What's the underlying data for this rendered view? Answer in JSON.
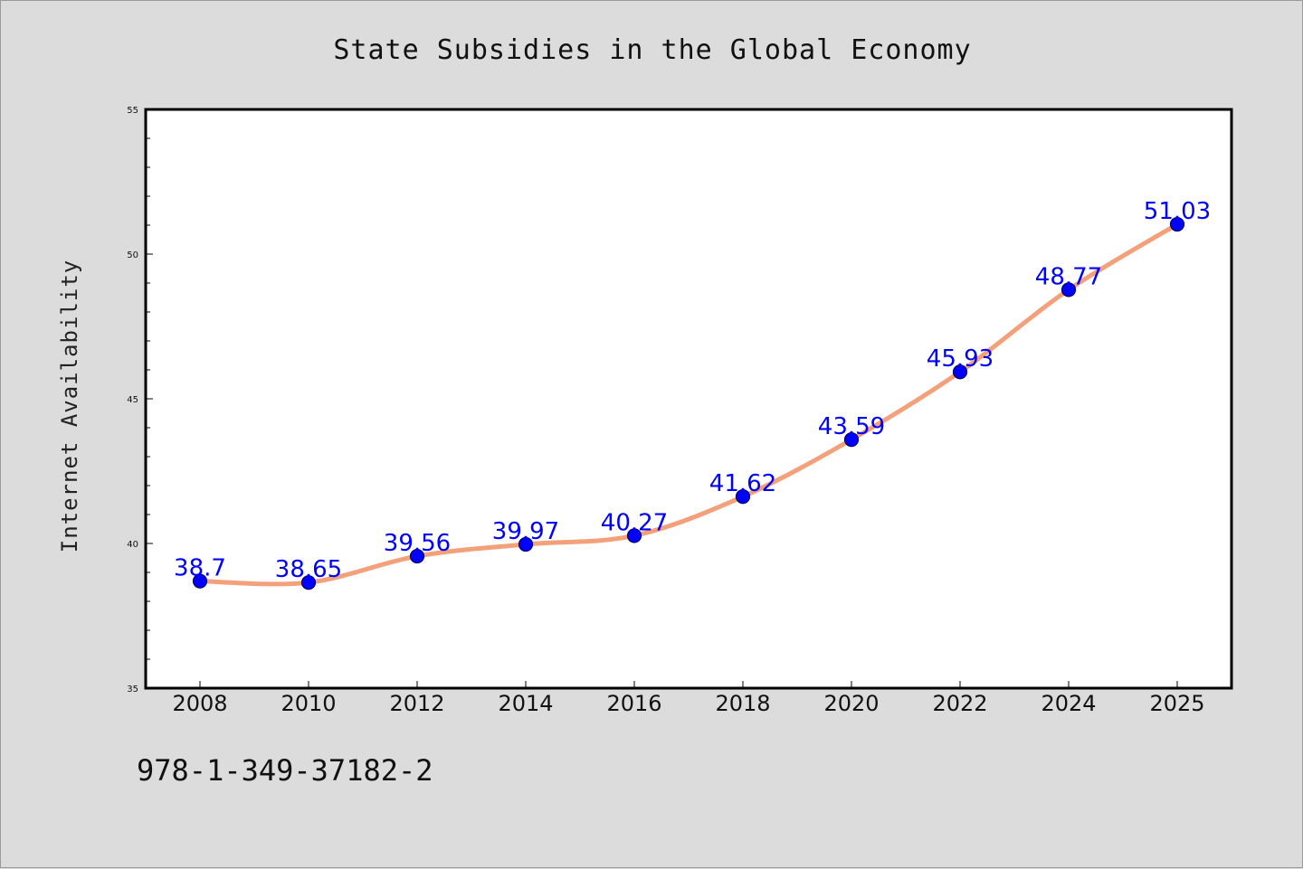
{
  "chart_data": {
    "type": "line",
    "title": "State Subsidies in the Global Economy",
    "xlabel": "",
    "ylabel": "Internet Availability",
    "categories": [
      "2008",
      "2010",
      "2012",
      "2014",
      "2016",
      "2018",
      "2020",
      "2022",
      "2024",
      "2025"
    ],
    "values": [
      38.7,
      38.65,
      39.56,
      39.97,
      40.27,
      41.62,
      43.59,
      45.93,
      48.77,
      51.03
    ],
    "data_labels": [
      "38.7",
      "38.65",
      "39.56",
      "39.97",
      "40.27",
      "41.62",
      "43.59",
      "45.93",
      "48.77",
      "51.03"
    ],
    "ylim": [
      35,
      55
    ],
    "yticks": [
      35,
      40,
      45,
      50,
      55
    ],
    "grid": false,
    "legend": "none",
    "colors": {
      "line": "#f4a07a",
      "marker": "#0000ff",
      "marker_edge": "#000066",
      "data_label": "#0000ff",
      "plot_background": "#ffffff",
      "figure_background": "#dcdcdc"
    }
  },
  "footer": {
    "isbn": "978-1-349-37182-2"
  }
}
